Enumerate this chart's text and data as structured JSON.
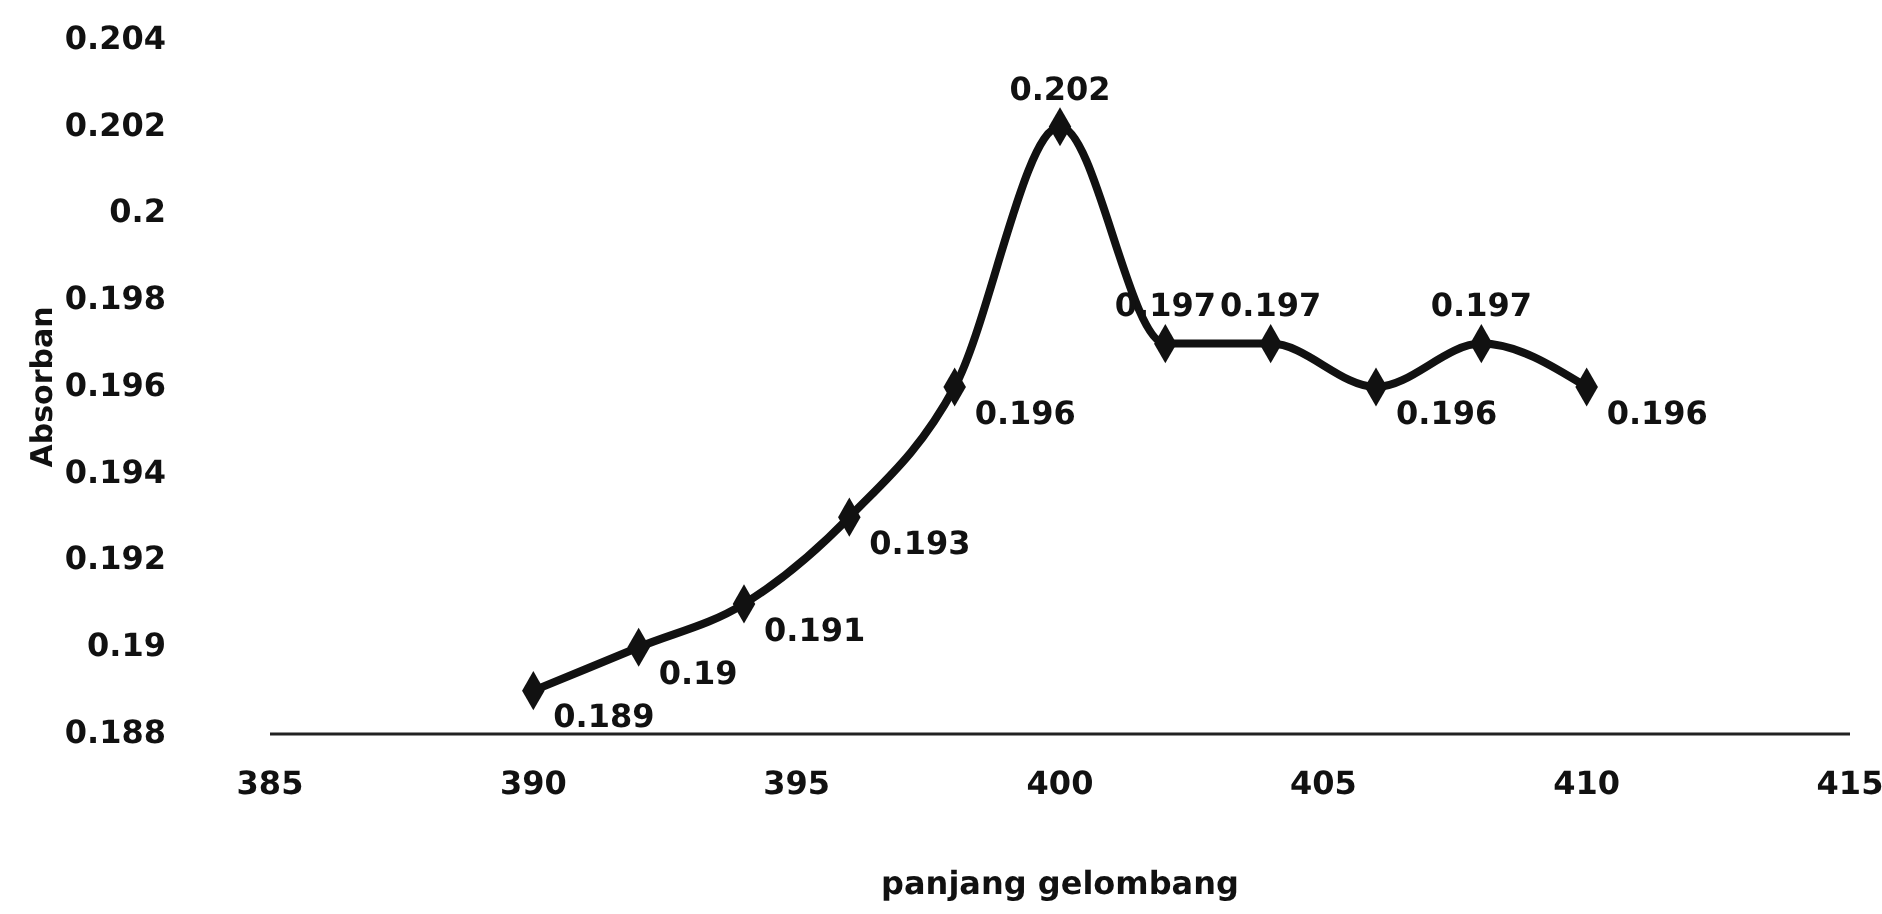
{
  "chart_data": {
    "type": "line",
    "xlabel": "panjang gelombang",
    "ylabel": "Absorban",
    "x": [
      390,
      392,
      394,
      396,
      398,
      400,
      402,
      404,
      406,
      408,
      410
    ],
    "series": [
      {
        "color": "#111111",
        "values": [
          0.189,
          0.19,
          0.191,
          0.193,
          0.196,
          0.202,
          0.197,
          0.197,
          0.196,
          0.197,
          0.196
        ]
      }
    ],
    "xlim": [
      385,
      415
    ],
    "xticks": [
      385,
      390,
      395,
      400,
      405,
      410,
      415
    ],
    "ylim": [
      0.188,
      0.204
    ],
    "yticks": [
      0.188,
      0.19,
      0.192,
      0.194,
      0.196,
      0.198,
      0.2,
      0.202,
      0.204
    ],
    "grid": false,
    "legend": false,
    "marker": "diamond",
    "line_style": "solid",
    "data_labels": true
  }
}
